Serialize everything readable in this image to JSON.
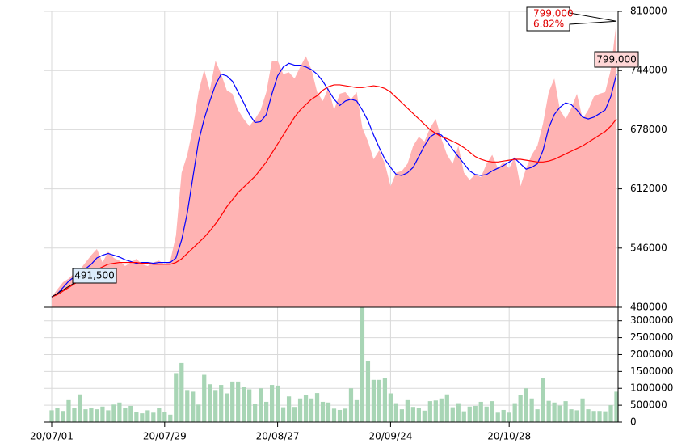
{
  "chart_data": {
    "type": "stock",
    "categories": [
      "20/07/01",
      null,
      null,
      null,
      null,
      null,
      null,
      null,
      null,
      null,
      null,
      null,
      null,
      null,
      null,
      null,
      null,
      null,
      null,
      null,
      "20/07/29",
      null,
      null,
      null,
      null,
      null,
      null,
      null,
      null,
      null,
      null,
      null,
      null,
      null,
      null,
      null,
      null,
      null,
      null,
      null,
      "20/08/27",
      null,
      null,
      null,
      null,
      null,
      null,
      null,
      null,
      null,
      null,
      null,
      null,
      null,
      null,
      null,
      null,
      null,
      null,
      null,
      "20/09/24",
      null,
      null,
      null,
      null,
      null,
      null,
      null,
      null,
      null,
      null,
      null,
      null,
      null,
      null,
      null,
      null,
      null,
      null,
      null,
      null,
      "20/10/28",
      null,
      null,
      null,
      null,
      null,
      null,
      null,
      null,
      null,
      null,
      null,
      null,
      null,
      null,
      null,
      null,
      null,
      null,
      null
    ],
    "series": [
      {
        "type": "area",
        "color": "#ffb3b3",
        "values": [
          491500,
          500000,
          508000,
          512000,
          518000,
          522000,
          530000,
          538000,
          545000,
          530000,
          542000,
          535000,
          532000,
          526000,
          530000,
          534000,
          528000,
          526000,
          530000,
          532000,
          528000,
          532000,
          560000,
          630000,
          650000,
          680000,
          720000,
          745000,
          722000,
          755000,
          740000,
          722000,
          718000,
          700000,
          690000,
          682000,
          690000,
          700000,
          720000,
          755000,
          755000,
          740000,
          742000,
          735000,
          748000,
          760000,
          745000,
          720000,
          710000,
          725000,
          700000,
          718000,
          720000,
          712000,
          720000,
          680000,
          665000,
          645000,
          655000,
          640000,
          615000,
          630000,
          632000,
          640000,
          660000,
          670000,
          665000,
          680000,
          690000,
          668000,
          650000,
          640000,
          660000,
          630000,
          622000,
          628000,
          625000,
          640000,
          650000,
          635000,
          642000,
          635000,
          648000,
          615000,
          635000,
          650000,
          660000,
          685000,
          720000,
          735000,
          700000,
          690000,
          702000,
          718000,
          690000,
          700000,
          715000,
          718000,
          720000,
          745000,
          799000
        ]
      },
      {
        "type": "line",
        "color": "#0000ff",
        "values": [
          491500,
          495000,
          502000,
          509000,
          514000,
          518000,
          523000,
          528000,
          535000,
          538000,
          540000,
          538000,
          536000,
          533000,
          531000,
          529000,
          530000,
          530000,
          529000,
          530000,
          530000,
          530000,
          535000,
          555000,
          585000,
          625000,
          665000,
          690000,
          710000,
          728000,
          740000,
          738000,
          732000,
          720000,
          708000,
          695000,
          686000,
          687000,
          695000,
          718000,
          738000,
          748000,
          752000,
          750000,
          750000,
          748000,
          745000,
          740000,
          732000,
          722000,
          712000,
          705000,
          710000,
          712000,
          710000,
          700000,
          688000,
          672000,
          658000,
          645000,
          636000,
          628000,
          627000,
          630000,
          636000,
          648000,
          660000,
          670000,
          674000,
          672000,
          665000,
          656000,
          648000,
          640000,
          632000,
          628000,
          627000,
          628000,
          632000,
          635000,
          638000,
          642000,
          646000,
          640000,
          634000,
          636000,
          640000,
          655000,
          680000,
          695000,
          703000,
          708000,
          706000,
          700000,
          692000,
          690000,
          692000,
          696000,
          700000,
          715000,
          740000
        ]
      },
      {
        "type": "line",
        "color": "#ff0000",
        "values": [
          491500,
          494000,
          498000,
          502000,
          506000,
          510000,
          514000,
          518000,
          522000,
          525000,
          528000,
          529000,
          530000,
          530000,
          530000,
          530000,
          529000,
          529000,
          528000,
          528000,
          528000,
          528000,
          530000,
          534000,
          540000,
          546000,
          552000,
          558000,
          565000,
          573000,
          582000,
          592000,
          600000,
          608000,
          614000,
          620000,
          626000,
          634000,
          642000,
          652000,
          662000,
          672000,
          682000,
          692000,
          700000,
          706000,
          712000,
          716000,
          722000,
          726000,
          728000,
          728000,
          727000,
          726000,
          725000,
          725000,
          726000,
          727000,
          726000,
          724000,
          720000,
          714000,
          708000,
          702000,
          696000,
          690000,
          684000,
          678000,
          674000,
          670000,
          668000,
          665000,
          662000,
          658000,
          653000,
          648000,
          645000,
          643000,
          642000,
          642000,
          643000,
          644000,
          645000,
          645000,
          644000,
          643000,
          642000,
          642000,
          643000,
          645000,
          648000,
          651000,
          654000,
          657000,
          660000,
          664000,
          668000,
          672000,
          676000,
          682000,
          690000
        ]
      },
      {
        "type": "bar",
        "axis": "y2",
        "color": "#a8d5b5",
        "values": [
          350000,
          420000,
          330000,
          650000,
          420000,
          820000,
          380000,
          420000,
          380000,
          460000,
          350000,
          520000,
          580000,
          420000,
          480000,
          310000,
          260000,
          350000,
          280000,
          420000,
          300000,
          220000,
          1450000,
          1750000,
          950000,
          900000,
          520000,
          1400000,
          1120000,
          950000,
          1100000,
          850000,
          1200000,
          1200000,
          1050000,
          970000,
          550000,
          1000000,
          600000,
          1100000,
          1080000,
          440000,
          760000,
          450000,
          700000,
          800000,
          700000,
          860000,
          600000,
          580000,
          400000,
          360000,
          400000,
          1000000,
          650000,
          3400000,
          1800000,
          1250000,
          1250000,
          1300000,
          850000,
          560000,
          380000,
          650000,
          450000,
          420000,
          340000,
          620000,
          640000,
          700000,
          820000,
          440000,
          560000,
          320000,
          460000,
          480000,
          600000,
          460000,
          620000,
          280000,
          360000,
          280000,
          560000,
          800000,
          1000000,
          700000,
          380000,
          1300000,
          630000,
          580000,
          490000,
          620000,
          380000,
          350000,
          700000,
          380000,
          330000,
          330000,
          320000,
          500000,
          900000
        ]
      }
    ],
    "ylim": [
      480000,
      810000
    ],
    "yticks": [
      480000,
      546000,
      612000,
      678000,
      744000,
      810000
    ],
    "y2lim": [
      0,
      3400000
    ],
    "y2ticks": [
      0,
      500000,
      1000000,
      1500000,
      2000000,
      2500000,
      3000000
    ],
    "grid": true,
    "annotations": {
      "low_label": "491,500",
      "last_label": "799,000",
      "change_box": {
        "price": "799,000",
        "change": "6.82%"
      }
    }
  }
}
